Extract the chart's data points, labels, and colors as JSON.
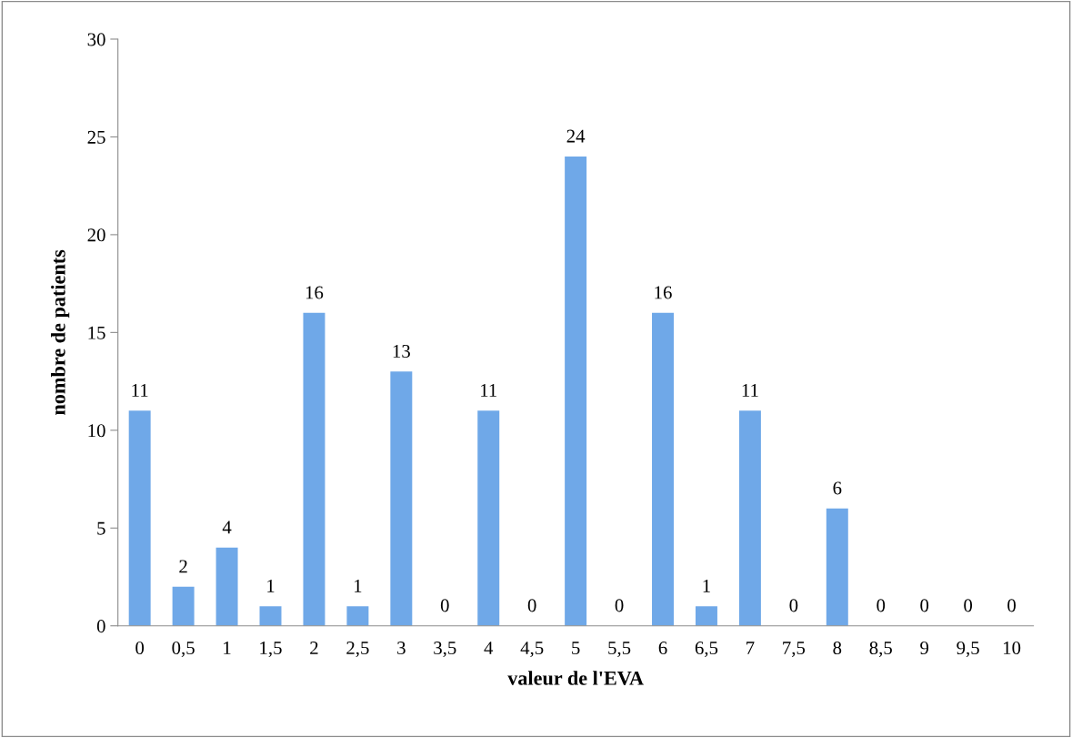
{
  "chart_data": {
    "type": "bar",
    "xlabel": "valeur de l'EVA",
    "ylabel": "nombre de patients",
    "categories": [
      "0",
      "0,5",
      "1",
      "1,5",
      "2",
      "2,5",
      "3",
      "3,5",
      "4",
      "4,5",
      "5",
      "5,5",
      "6",
      "6,5",
      "7",
      "7,5",
      "8",
      "8,5",
      "9",
      "9,5",
      "10"
    ],
    "values": [
      11,
      2,
      4,
      1,
      16,
      1,
      13,
      0,
      11,
      0,
      24,
      0,
      16,
      1,
      11,
      0,
      6,
      0,
      0,
      0,
      0
    ],
    "color": "#6fa8e8",
    "ylim": [
      0,
      30
    ],
    "yticks": [
      0,
      5,
      10,
      15,
      20,
      25,
      30
    ],
    "grid": false,
    "data_labels": true
  }
}
